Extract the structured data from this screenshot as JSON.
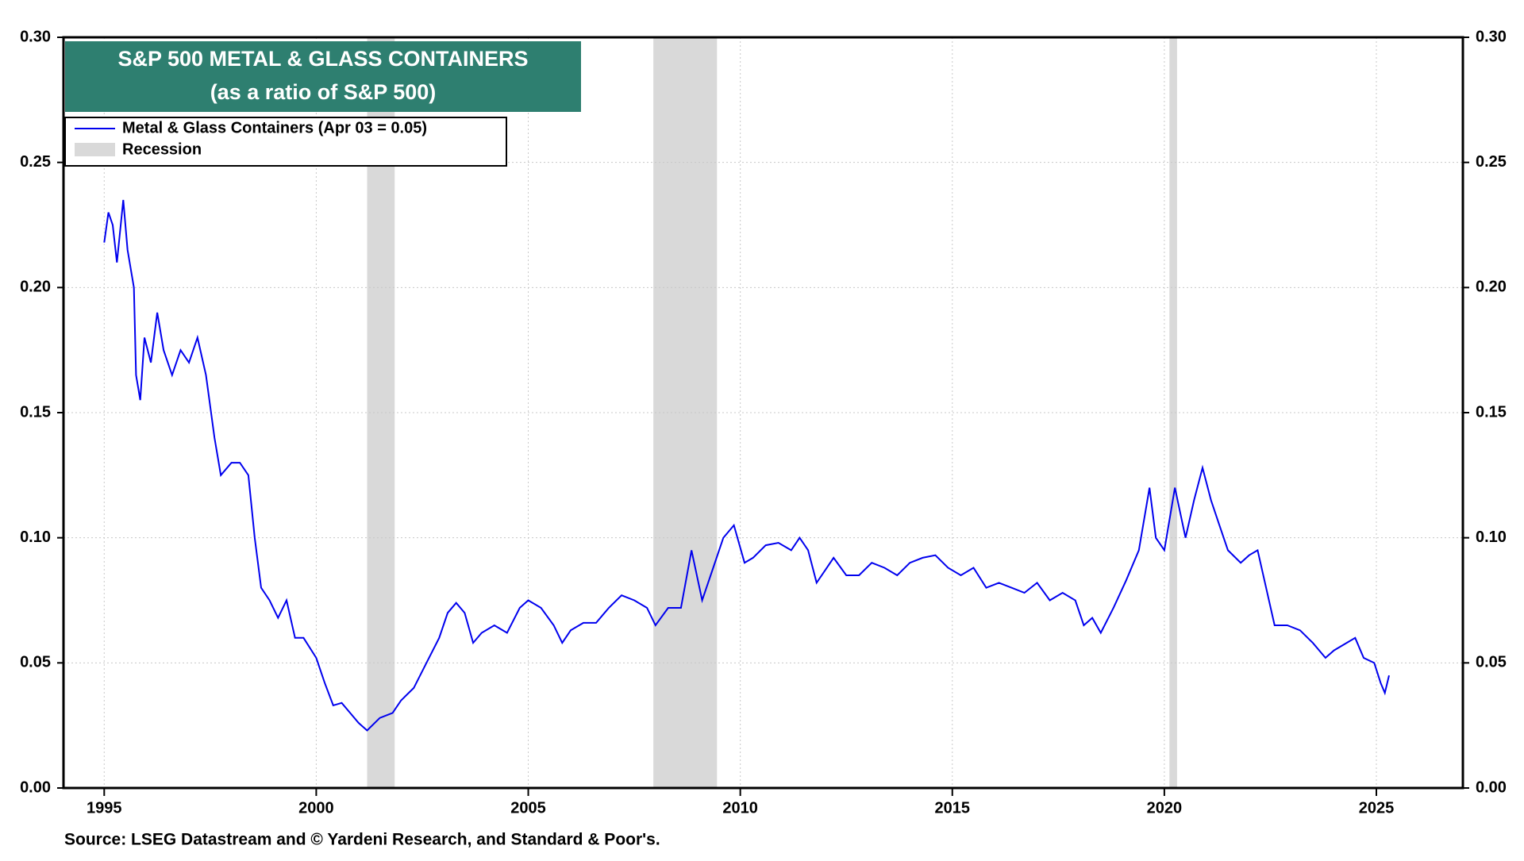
{
  "chart_data": {
    "type": "line",
    "title": "S&P 500 METAL & GLASS CONTAINERS",
    "subtitle": "(as a ratio of S&P 500)",
    "source": "Source: LSEG Datastream and © Yardeni Research, and Standard & Poor's.",
    "recession_label": "Recession",
    "recession_color": "#d9d9d9",
    "recessions": [
      [
        2001.2,
        2001.85
      ],
      [
        2007.95,
        2009.45
      ],
      [
        2020.12,
        2020.3
      ]
    ],
    "xlim": [
      1994.04,
      2027.04
    ],
    "xticks": [
      1995,
      2000,
      2005,
      2010,
      2015,
      2020,
      2025
    ],
    "ylim": [
      0,
      0.3
    ],
    "yticks": [
      {
        "value": 0,
        "label": "0.00"
      },
      {
        "value": 0.05,
        "label": "0.05"
      },
      {
        "value": 0.1,
        "label": "0.10"
      },
      {
        "value": 0.15,
        "label": "0.15"
      },
      {
        "value": 0.2,
        "label": "0.20"
      },
      {
        "value": 0.25,
        "label": "0.25"
      },
      {
        "value": 0.3,
        "label": "0.30"
      }
    ],
    "grid": true,
    "legend": "top-left",
    "x": [
      1995.0,
      1995.1,
      1995.2,
      1995.3,
      1995.45,
      1995.55,
      1995.7,
      1995.75,
      1995.85,
      1995.95,
      1996.1,
      1996.25,
      1996.4,
      1996.6,
      1996.8,
      1997.0,
      1997.2,
      1997.4,
      1997.6,
      1997.75,
      1998.0,
      1998.2,
      1998.4,
      1998.55,
      1998.7,
      1998.9,
      1999.1,
      1999.3,
      1999.5,
      1999.7,
      2000.0,
      2000.2,
      2000.4,
      2000.6,
      2000.8,
      2001.0,
      2001.2,
      2001.5,
      2001.8,
      2002.0,
      2002.3,
      2002.6,
      2002.9,
      2003.1,
      2003.3,
      2003.5,
      2003.7,
      2003.9,
      2004.2,
      2004.5,
      2004.8,
      2005.0,
      2005.3,
      2005.6,
      2005.8,
      2006.0,
      2006.3,
      2006.6,
      2006.9,
      2007.2,
      2007.5,
      2007.8,
      2008.0,
      2008.3,
      2008.6,
      2008.85,
      2009.1,
      2009.3,
      2009.6,
      2009.85,
      2010.1,
      2010.3,
      2010.6,
      2010.9,
      2011.2,
      2011.4,
      2011.6,
      2011.8,
      2012.0,
      2012.2,
      2012.5,
      2012.8,
      2013.1,
      2013.4,
      2013.7,
      2014.0,
      2014.3,
      2014.6,
      2014.9,
      2015.2,
      2015.5,
      2015.8,
      2016.1,
      2016.4,
      2016.7,
      2017.0,
      2017.3,
      2017.6,
      2017.9,
      2018.1,
      2018.3,
      2018.5,
      2018.8,
      2019.1,
      2019.4,
      2019.65,
      2019.8,
      2020.0,
      2020.25,
      2020.5,
      2020.7,
      2020.9,
      2021.1,
      2021.3,
      2021.5,
      2021.8,
      2022.0,
      2022.2,
      2022.4,
      2022.6,
      2022.9,
      2023.2,
      2023.5,
      2023.8,
      2024.0,
      2024.3,
      2024.5,
      2024.7,
      2024.95,
      2025.1,
      2025.2,
      2025.3
    ],
    "series": [
      {
        "name": "Metal & Glass Containers (Apr 03 = 0.05)",
        "color": "#0000ee",
        "values": [
          0.218,
          0.23,
          0.225,
          0.21,
          0.235,
          0.215,
          0.2,
          0.165,
          0.155,
          0.18,
          0.17,
          0.19,
          0.175,
          0.165,
          0.175,
          0.17,
          0.18,
          0.165,
          0.14,
          0.125,
          0.13,
          0.13,
          0.125,
          0.1,
          0.08,
          0.075,
          0.068,
          0.075,
          0.06,
          0.06,
          0.052,
          0.042,
          0.033,
          0.034,
          0.03,
          0.026,
          0.023,
          0.028,
          0.03,
          0.035,
          0.04,
          0.05,
          0.06,
          0.07,
          0.074,
          0.07,
          0.058,
          0.062,
          0.065,
          0.062,
          0.072,
          0.075,
          0.072,
          0.065,
          0.058,
          0.063,
          0.066,
          0.066,
          0.072,
          0.077,
          0.075,
          0.072,
          0.065,
          0.072,
          0.072,
          0.095,
          0.075,
          0.085,
          0.1,
          0.105,
          0.09,
          0.092,
          0.097,
          0.098,
          0.095,
          0.1,
          0.095,
          0.082,
          0.087,
          0.092,
          0.085,
          0.085,
          0.09,
          0.088,
          0.085,
          0.09,
          0.092,
          0.093,
          0.088,
          0.085,
          0.088,
          0.08,
          0.082,
          0.08,
          0.078,
          0.082,
          0.075,
          0.078,
          0.075,
          0.065,
          0.068,
          0.062,
          0.072,
          0.083,
          0.095,
          0.12,
          0.1,
          0.095,
          0.12,
          0.1,
          0.115,
          0.128,
          0.115,
          0.105,
          0.095,
          0.09,
          0.093,
          0.095,
          0.08,
          0.065,
          0.065,
          0.063,
          0.058,
          0.052,
          0.055,
          0.058,
          0.06,
          0.052,
          0.05,
          0.042,
          0.038,
          0.045
        ]
      }
    ]
  }
}
